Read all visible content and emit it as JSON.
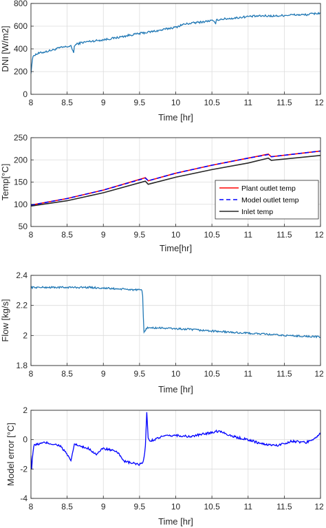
{
  "chart_data": [
    {
      "type": "line",
      "xlabel": "Time [hr]",
      "ylabel": "DNI [W/m2]",
      "xlim": [
        8,
        12
      ],
      "ylim": [
        0,
        800
      ],
      "xticks": [
        "8",
        "8.5",
        "9",
        "9.5",
        "10",
        "10.5",
        "11",
        "11.5",
        "12"
      ],
      "yticks": [
        "0",
        "200",
        "400",
        "600",
        "800"
      ],
      "grid": true,
      "series": [
        {
          "color": "#1f77b4",
          "x": [
            8.0,
            8.02,
            8.04,
            8.1,
            8.2,
            8.3,
            8.4,
            8.5,
            8.55,
            8.59,
            8.6,
            8.62,
            8.7,
            8.8,
            9.0,
            9.2,
            9.4,
            9.6,
            9.8,
            9.9,
            10.0,
            10.1,
            10.2,
            10.4,
            10.5,
            10.55,
            10.56,
            10.6,
            10.8,
            11.0,
            11.2,
            11.4,
            11.6,
            11.8,
            11.9,
            12.0
          ],
          "y": [
            190,
            310,
            345,
            360,
            375,
            390,
            410,
            420,
            425,
            370,
            420,
            440,
            455,
            465,
            480,
            500,
            525,
            545,
            565,
            580,
            590,
            615,
            625,
            640,
            650,
            625,
            650,
            660,
            670,
            685,
            690,
            690,
            700,
            700,
            710,
            715
          ]
        }
      ]
    },
    {
      "type": "line",
      "xlabel": "Time[hr]",
      "ylabel": "Temp[°C]",
      "xlim": [
        8,
        12
      ],
      "ylim": [
        50,
        250
      ],
      "xticks": [
        "8",
        "8.5",
        "9",
        "9.5",
        "10",
        "10.5",
        "11",
        "11.5",
        "12"
      ],
      "yticks": [
        "50",
        "100",
        "150",
        "200",
        "250"
      ],
      "grid": true,
      "legend": "bottom-right",
      "series": [
        {
          "name": "Plant outlet temp",
          "color": "#ff0000",
          "style": "solid",
          "x": [
            8.0,
            8.5,
            9.0,
            9.58,
            9.62,
            10.0,
            10.5,
            11.0,
            11.28,
            11.32,
            12.0
          ],
          "y": [
            98,
            113,
            132,
            160,
            153,
            170,
            188,
            204,
            213,
            207,
            220
          ]
        },
        {
          "name": "Model outlet temp",
          "color": "#0000ff",
          "style": "dashed",
          "x": [
            8.0,
            8.5,
            9.0,
            9.58,
            9.62,
            10.0,
            10.5,
            11.0,
            11.28,
            11.32,
            12.0
          ],
          "y": [
            98,
            113,
            132,
            159,
            153,
            170,
            188,
            204,
            212,
            207,
            220
          ]
        },
        {
          "name": "Inlet temp",
          "color": "#262626",
          "style": "solid",
          "x": [
            8.0,
            8.5,
            9.0,
            9.58,
            9.62,
            10.0,
            10.5,
            11.0,
            11.28,
            11.32,
            12.0
          ],
          "y": [
            96,
            108,
            126,
            152,
            145,
            161,
            178,
            193,
            204,
            199,
            210
          ]
        }
      ]
    },
    {
      "type": "line",
      "xlabel": "Time [hr]",
      "ylabel": "Flow [kg/s]",
      "xlim": [
        8,
        12
      ],
      "ylim": [
        1.8,
        2.4
      ],
      "xticks": [
        "8",
        "8.5",
        "9",
        "9.5",
        "10",
        "10.5",
        "11",
        "11.5",
        "12"
      ],
      "yticks": [
        "1.8",
        "2",
        "2.2",
        "2.4"
      ],
      "grid": true,
      "series": [
        {
          "color": "#1f77b4",
          "x": [
            8.0,
            8.2,
            8.4,
            8.6,
            8.8,
            9.0,
            9.2,
            9.4,
            9.54,
            9.56,
            9.6,
            9.8,
            10.0,
            10.2,
            10.5,
            10.8,
            11.0,
            11.2,
            11.5,
            11.8,
            12.0
          ],
          "y": [
            2.32,
            2.32,
            2.32,
            2.32,
            2.32,
            2.315,
            2.31,
            2.305,
            2.3,
            2.02,
            2.05,
            2.05,
            2.045,
            2.04,
            2.03,
            2.02,
            2.015,
            2.01,
            2.0,
            1.995,
            1.99
          ]
        }
      ]
    },
    {
      "type": "line",
      "xlabel": "Time [hr]",
      "ylabel": "Model error [°C]",
      "xlim": [
        8,
        12
      ],
      "ylim": [
        -4,
        2
      ],
      "xticks": [
        "8",
        "8.5",
        "9",
        "9.5",
        "10",
        "10.5",
        "11",
        "11.5",
        "12"
      ],
      "yticks": [
        "-4",
        "-2",
        "0",
        "2"
      ],
      "grid": true,
      "series": [
        {
          "color": "#0000ff",
          "x": [
            8.0,
            8.01,
            8.02,
            8.04,
            8.1,
            8.2,
            8.3,
            8.4,
            8.5,
            8.55,
            8.6,
            8.7,
            8.8,
            8.9,
            9.0,
            9.1,
            9.2,
            9.3,
            9.4,
            9.5,
            9.55,
            9.58,
            9.6,
            9.62,
            9.64,
            9.7,
            9.8,
            10.0,
            10.2,
            10.4,
            10.6,
            10.7,
            10.8,
            11.0,
            11.2,
            11.4,
            11.6,
            11.8,
            11.95,
            12.0
          ],
          "y": [
            -1.0,
            -2.1,
            -1.2,
            -0.4,
            -0.3,
            -0.2,
            -0.3,
            -0.4,
            -1.0,
            -1.5,
            -0.3,
            -0.5,
            -0.6,
            -1.0,
            -0.6,
            -0.7,
            -0.9,
            -1.5,
            -1.6,
            -1.7,
            -1.6,
            -0.5,
            1.8,
            0.1,
            -0.1,
            0.0,
            0.2,
            0.3,
            0.2,
            0.4,
            0.6,
            0.4,
            0.2,
            0.0,
            -0.3,
            -0.4,
            -0.1,
            -0.2,
            0.2,
            0.4
          ]
        }
      ]
    }
  ]
}
